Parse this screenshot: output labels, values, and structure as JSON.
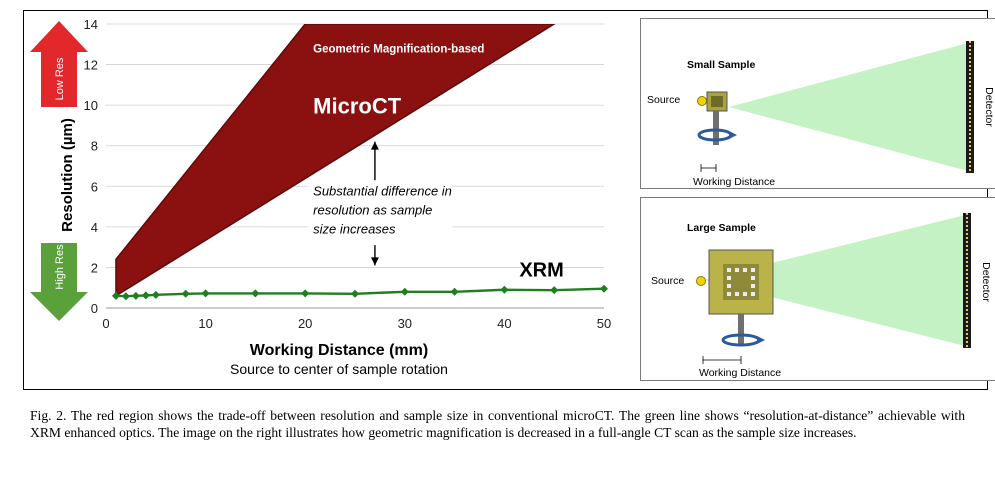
{
  "chart_data": {
    "type": "line",
    "xlabel": "Working Distance (mm)",
    "xlabel_sub": "Source to center of sample rotation",
    "ylabel": "Resolution (µm)",
    "xlim": [
      0,
      50
    ],
    "ylim": [
      0,
      14
    ],
    "xticks": [
      0,
      10,
      20,
      30,
      40,
      50
    ],
    "yticks": [
      0,
      2,
      4,
      6,
      8,
      10,
      12,
      14
    ],
    "grid": true,
    "regions": [
      {
        "name": "Geometric Magnification-based",
        "label": "MicroCT",
        "color": "#8b1111",
        "outline": "#5e0a0a",
        "polygon": [
          [
            1,
            2.4
          ],
          [
            1,
            0.6
          ],
          [
            45,
            14
          ],
          [
            20,
            14
          ]
        ]
      }
    ],
    "series": [
      {
        "name": "XRM",
        "color": "#1e7f1e",
        "x": [
          1,
          2,
          3,
          4,
          5,
          8,
          10,
          15,
          20,
          25,
          30,
          35,
          40,
          45,
          50
        ],
        "y": [
          0.6,
          0.58,
          0.6,
          0.62,
          0.65,
          0.7,
          0.72,
          0.72,
          0.72,
          0.7,
          0.8,
          0.8,
          0.9,
          0.88,
          0.95
        ]
      }
    ],
    "annotation": {
      "lines": [
        "Substantial difference in",
        "resolution as sample",
        "size increases"
      ],
      "arrow_x": 27,
      "arrow_from": 8.2,
      "arrow_to": 2.1
    },
    "side_arrows": {
      "top": {
        "label": "Low Res",
        "color": "#e3282c"
      },
      "bottom": {
        "label": "High Res",
        "color": "#5aa13b"
      }
    }
  },
  "panels": {
    "small": {
      "title": "Small Sample",
      "source": "Source",
      "detector": "Detector",
      "distance": "Working Distance"
    },
    "large": {
      "title": "Large Sample",
      "source": "Source",
      "detector": "Detector",
      "distance": "Working Distance"
    }
  },
  "caption": "Fig. 2. The red region shows the trade-off between resolution and sample size in conventional microCT. The green line shows “resolution-at-distance” achievable with XRM enhanced optics. The image on the right illustrates how geometric magnification is decreased in a full-angle CT scan as the sample size increases."
}
